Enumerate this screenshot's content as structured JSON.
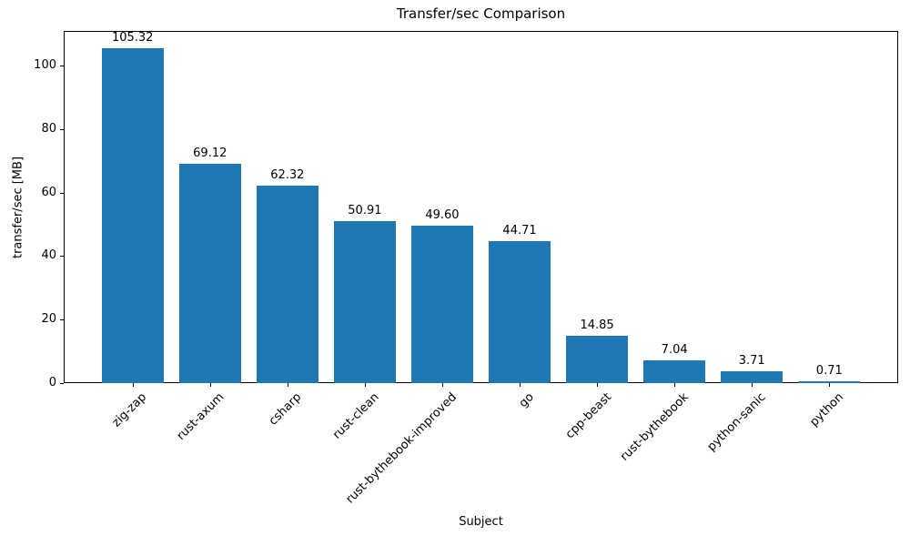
{
  "chart_data": {
    "type": "bar",
    "title": "Transfer/sec Comparison",
    "xlabel": "Subject",
    "ylabel": "transfer/sec [MB]",
    "categories": [
      "zig-zap",
      "rust-axum",
      "csharp",
      "rust-clean",
      "rust-bythebook-improved",
      "go",
      "cpp-beast",
      "rust-bythebook",
      "python-sanic",
      "python"
    ],
    "values": [
      105.32,
      69.12,
      62.32,
      50.91,
      49.6,
      44.71,
      14.85,
      7.04,
      3.71,
      0.71
    ],
    "value_labels": [
      "105.32",
      "69.12",
      "62.32",
      "50.91",
      "49.60",
      "44.71",
      "14.85",
      "7.04",
      "3.71",
      "0.71"
    ],
    "yticks": [
      0,
      20,
      40,
      60,
      80,
      100
    ],
    "ylim": [
      0,
      110.9
    ],
    "bar_color": "#1f77b4",
    "axis_color": "#000000",
    "grid": false,
    "legend": null,
    "x_tick_rotation_deg": 45
  }
}
